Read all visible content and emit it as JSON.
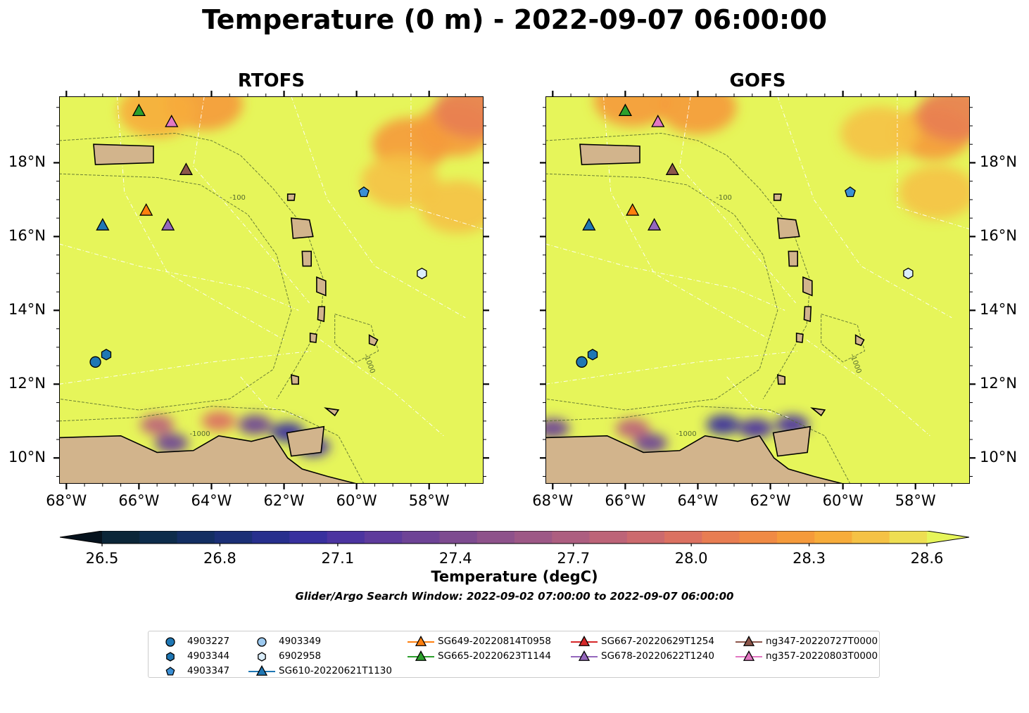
{
  "figure": {
    "title": "Temperature (0 m) - 2022-09-07 06:00:00",
    "search_window": "Glider/Argo Search Window: 2022-09-02 07:00:00 to 2022-09-07 06:00:00"
  },
  "colorbar": {
    "label": "Temperature (degC)",
    "ticks": [
      "26.5",
      "26.8",
      "27.1",
      "27.4",
      "27.7",
      "28.0",
      "28.3",
      "28.6"
    ],
    "min": 26.5,
    "max": 28.6,
    "step": 0.1,
    "extend": "both",
    "colors": [
      "#0b2638",
      "#0d2c4b",
      "#132e62",
      "#1b2f76",
      "#272f8d",
      "#38309e",
      "#4c34a0",
      "#5e3b9c",
      "#6e4396",
      "#7e4b90",
      "#8e528b",
      "#9d5886",
      "#ad5e80",
      "#bd6478",
      "#cc6a6e",
      "#db7161",
      "#e87d52",
      "#f08a44",
      "#f59a3b",
      "#f7ac3a",
      "#f5c245",
      "#eede52"
    ],
    "low_color": "#06121d",
    "high_color": "#e6f55a"
  },
  "chart_data": [
    {
      "type": "heatmap",
      "title": "RTOFS",
      "variable": "Temperature (0 m)",
      "units": "degC",
      "xlim": [
        -68.2,
        -56.5
      ],
      "ylim": [
        9.3,
        19.8
      ],
      "xticks": [
        "68°W",
        "66°W",
        "64°W",
        "62°W",
        "60°W",
        "58°W"
      ],
      "xtick_values": [
        -68,
        -66,
        -64,
        -62,
        -60,
        -58
      ],
      "yticks": [
        "18°N",
        "16°N",
        "14°N",
        "12°N",
        "10°N"
      ],
      "ytick_values": [
        18,
        16,
        14,
        12,
        10
      ],
      "ytick_side": "left",
      "background_value": 28.6,
      "warm_patches": [
        {
          "lon": -64.2,
          "lat": 19.6,
          "value": 28.4
        },
        {
          "lon": -65.5,
          "lat": 19.4,
          "value": 28.45
        },
        {
          "lon": -58.5,
          "lat": 18.5,
          "value": 28.4
        },
        {
          "lon": -57.3,
          "lat": 18.9,
          "value": 28.3
        },
        {
          "lon": -56.8,
          "lat": 19.4,
          "value": 28.2
        },
        {
          "lon": -58.8,
          "lat": 17.5,
          "value": 28.5
        },
        {
          "lon": -57.2,
          "lat": 16.8,
          "value": 28.5
        }
      ],
      "cool_patches": [
        {
          "lon": -61.9,
          "lat": 10.7,
          "value": 27.0
        },
        {
          "lon": -61.2,
          "lat": 10.3,
          "value": 27.1
        },
        {
          "lon": -62.8,
          "lat": 10.9,
          "value": 27.4
        },
        {
          "lon": -65.1,
          "lat": 10.4,
          "value": 27.3
        },
        {
          "lon": -65.5,
          "lat": 10.9,
          "value": 27.9
        },
        {
          "lon": -63.8,
          "lat": 11.0,
          "value": 28.0
        }
      ],
      "depth_contours": [
        "-100",
        "-1000"
      ],
      "observations": [
        {
          "id": "4903227",
          "marker": "circle",
          "color": "#1f77b4",
          "lon": -67.2,
          "lat": 12.6
        },
        {
          "id": "4903344",
          "marker": "hexagon",
          "color": "#1f77b4",
          "lon": -66.9,
          "lat": 12.8
        },
        {
          "id": "4903347",
          "marker": "pentagon",
          "color": "#3b8fd4",
          "lon": -59.8,
          "lat": 17.2
        },
        {
          "id": "6902958",
          "marker": "hexagon",
          "color": "#dbeefb",
          "lon": -58.2,
          "lat": 15.0
        },
        {
          "id": "SG610-20220621T1130",
          "marker": "triangle",
          "color": "#1f77b4",
          "lon": -67.0,
          "lat": 16.3
        },
        {
          "id": "SG649-20220814T0958",
          "marker": "triangle",
          "color": "#ff7f0e",
          "lon": -65.8,
          "lat": 16.7
        },
        {
          "id": "SG665-20220623T1144",
          "marker": "triangle",
          "color": "#2ca02c",
          "lon": -66.0,
          "lat": 19.4
        },
        {
          "id": "SG678-20220622T1240",
          "marker": "triangle",
          "color": "#9467bd",
          "lon": -65.2,
          "lat": 16.3
        },
        {
          "id": "ng347-20220727T0000",
          "marker": "triangle",
          "color": "#8c564b",
          "lon": -64.7,
          "lat": 17.8
        },
        {
          "id": "ng357-20220803T0000",
          "marker": "triangle",
          "color": "#e377c2",
          "lon": -65.1,
          "lat": 19.1
        }
      ]
    },
    {
      "type": "heatmap",
      "title": "GOFS",
      "variable": "Temperature (0 m)",
      "units": "degC",
      "xlim": [
        -68.2,
        -56.5
      ],
      "ylim": [
        9.3,
        19.8
      ],
      "xticks": [
        "68°W",
        "66°W",
        "64°W",
        "62°W",
        "60°W",
        "58°W"
      ],
      "xtick_values": [
        -68,
        -66,
        -64,
        -62,
        -60,
        -58
      ],
      "yticks": [
        "18°N",
        "16°N",
        "14°N",
        "12°N",
        "10°N"
      ],
      "ytick_values": [
        18,
        16,
        14,
        12,
        10
      ],
      "ytick_side": "right",
      "background_value": 28.6,
      "warm_patches": [
        {
          "lon": -64.0,
          "lat": 19.5,
          "value": 28.35
        },
        {
          "lon": -65.8,
          "lat": 19.7,
          "value": 28.4
        },
        {
          "lon": -57.5,
          "lat": 18.8,
          "value": 28.3
        },
        {
          "lon": -56.9,
          "lat": 19.3,
          "value": 28.15
        },
        {
          "lon": -59.0,
          "lat": 18.8,
          "value": 28.5
        },
        {
          "lon": -57.4,
          "lat": 17.2,
          "value": 28.5
        }
      ],
      "cool_patches": [
        {
          "lon": -63.3,
          "lat": 10.9,
          "value": 27.0
        },
        {
          "lon": -62.4,
          "lat": 10.8,
          "value": 27.2
        },
        {
          "lon": -65.3,
          "lat": 10.4,
          "value": 27.4
        },
        {
          "lon": -65.8,
          "lat": 10.8,
          "value": 27.9
        },
        {
          "lon": -68.0,
          "lat": 10.8,
          "value": 27.3
        },
        {
          "lon": -61.4,
          "lat": 10.9,
          "value": 27.1
        }
      ],
      "depth_contours": [
        "-100",
        "-1000"
      ],
      "observations": [
        {
          "id": "4903227",
          "marker": "circle",
          "color": "#1f77b4",
          "lon": -67.2,
          "lat": 12.6
        },
        {
          "id": "4903344",
          "marker": "hexagon",
          "color": "#1f77b4",
          "lon": -66.9,
          "lat": 12.8
        },
        {
          "id": "4903347",
          "marker": "pentagon",
          "color": "#3b8fd4",
          "lon": -59.8,
          "lat": 17.2
        },
        {
          "id": "6902958",
          "marker": "hexagon",
          "color": "#dbeefb",
          "lon": -58.2,
          "lat": 15.0
        },
        {
          "id": "SG610-20220621T1130",
          "marker": "triangle",
          "color": "#1f77b4",
          "lon": -67.0,
          "lat": 16.3
        },
        {
          "id": "SG649-20220814T0958",
          "marker": "triangle",
          "color": "#ff7f0e",
          "lon": -65.8,
          "lat": 16.7
        },
        {
          "id": "SG665-20220623T1144",
          "marker": "triangle",
          "color": "#2ca02c",
          "lon": -66.0,
          "lat": 19.4
        },
        {
          "id": "SG678-20220622T1240",
          "marker": "triangle",
          "color": "#9467bd",
          "lon": -65.2,
          "lat": 16.3
        },
        {
          "id": "ng347-20220727T0000",
          "marker": "triangle",
          "color": "#8c564b",
          "lon": -64.7,
          "lat": 17.8
        },
        {
          "id": "ng357-20220803T0000",
          "marker": "triangle",
          "color": "#e377c2",
          "lon": -65.1,
          "lat": 19.1
        }
      ]
    }
  ],
  "legend": {
    "entries": [
      {
        "label": "4903227",
        "marker": "circle",
        "color": "#1f77b4",
        "line": false
      },
      {
        "label": "4903344",
        "marker": "hexagon",
        "color": "#1f77b4",
        "line": false
      },
      {
        "label": "4903347",
        "marker": "pentagon",
        "color": "#3b8fd4",
        "line": false
      },
      {
        "label": "4903349",
        "marker": "circle",
        "color": "#9cc9ef",
        "line": false
      },
      {
        "label": "6902958",
        "marker": "hexagon",
        "color": "#dbeefb",
        "line": false
      },
      {
        "label": "SG610-20220621T1130",
        "marker": "triangle",
        "color": "#1f77b4",
        "line": true
      },
      {
        "label": "SG649-20220814T0958",
        "marker": "triangle",
        "color": "#ff7f0e",
        "line": true
      },
      {
        "label": "SG665-20220623T1144",
        "marker": "triangle",
        "color": "#2ca02c",
        "line": true
      },
      {
        "label": "SG667-20220629T1254",
        "marker": "triangle",
        "color": "#d62728",
        "line": true
      },
      {
        "label": "SG678-20220622T1240",
        "marker": "triangle",
        "color": "#9467bd",
        "line": true
      },
      {
        "label": "ng347-20220727T0000",
        "marker": "triangle",
        "color": "#8c564b",
        "line": true
      },
      {
        "label": "ng357-20220803T0000",
        "marker": "triangle",
        "color": "#e377c2",
        "line": true
      }
    ]
  }
}
